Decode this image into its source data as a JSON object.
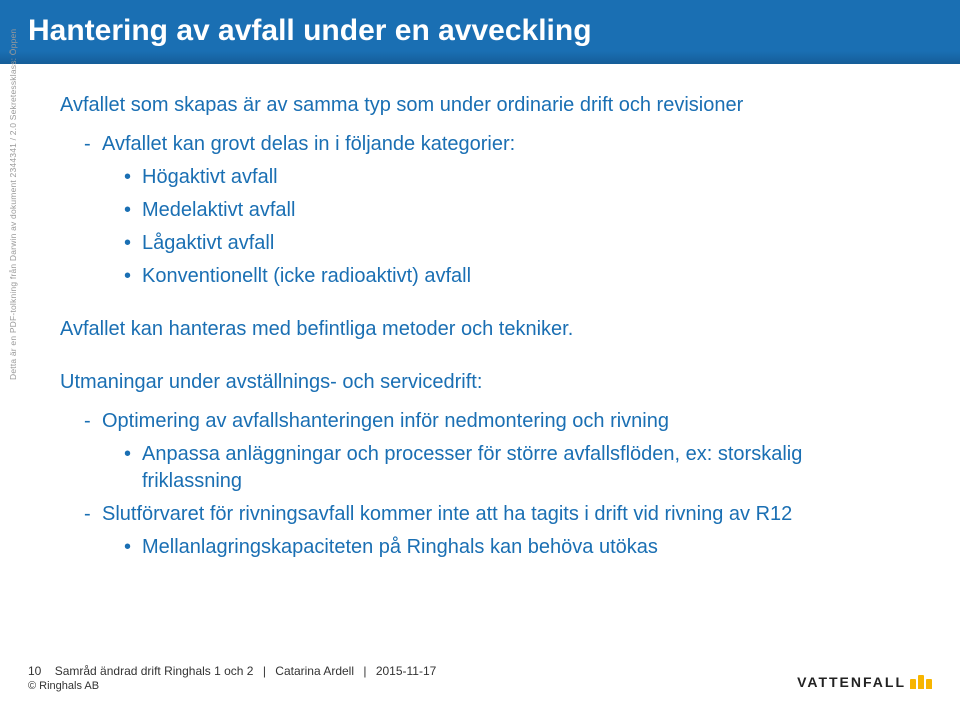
{
  "title": "Hantering av avfall under en avveckling",
  "para1": "Avfallet som skapas är av samma typ som under ordinarie drift och revisioner",
  "sub1_1": "Avfallet kan grovt delas in i följande kategorier:",
  "sub2_1": "Högaktivt avfall",
  "sub2_2": "Medelaktivt avfall",
  "sub2_3": "Lågaktivt avfall",
  "sub2_4": "Konventionellt (icke radioaktivt) avfall",
  "para2": "Avfallet kan hanteras med befintliga metoder och tekniker.",
  "para3": "Utmaningar under avställnings- och servicedrift:",
  "sub3_1": "Optimering av avfallshanteringen inför nedmontering och rivning",
  "sub3_1_1": "Anpassa anläggningar och processer för större avfallsflöden, ex: storskalig friklassning",
  "sub3_2": "Slutförvaret för rivningsavfall kommer inte att ha tagits i drift vid rivning av R12",
  "sub3_2_1": "Mellanlagringskapaciteten på Ringhals kan behöva utökas",
  "sidebar": "Detta är en PDF-tolkning från Darwin av dokument 2344341 / 2.0    Sekretessklass: Öppen",
  "footer": {
    "page": "10",
    "subject": "Samråd ändrad drift Ringhals 1 och 2",
    "author": "Catarina Ardell",
    "date": "2015-11-17",
    "copyright": "© Ringhals AB"
  },
  "logo": "VATTENFALL",
  "colors": {
    "title_bg": "#1a6fb3",
    "text": "#1a6fb3",
    "sidebar": "#999999",
    "logo_accent": "#f7b500"
  },
  "fontsizes": {
    "title": 30,
    "body": 20,
    "footer": 12,
    "sidebar": 8.5
  }
}
